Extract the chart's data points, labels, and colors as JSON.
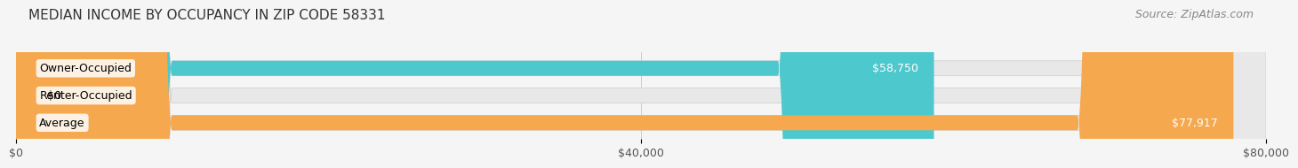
{
  "title": "MEDIAN INCOME BY OCCUPANCY IN ZIP CODE 58331",
  "source": "Source: ZipAtlas.com",
  "categories": [
    "Owner-Occupied",
    "Renter-Occupied",
    "Average"
  ],
  "values": [
    58750,
    0,
    77917
  ],
  "bar_colors": [
    "#4dc8cc",
    "#c8a8d8",
    "#f5a84e"
  ],
  "bar_labels": [
    "$58,750",
    "$0",
    "$77,917"
  ],
  "xlim": [
    0,
    80000
  ],
  "xticks": [
    0,
    40000,
    80000
  ],
  "xtick_labels": [
    "$0",
    "$40,000",
    "$80,000"
  ],
  "background_color": "#f5f5f5",
  "bar_bg_color": "#e8e8e8",
  "title_fontsize": 11,
  "source_fontsize": 9,
  "label_fontsize": 9,
  "tick_fontsize": 9
}
